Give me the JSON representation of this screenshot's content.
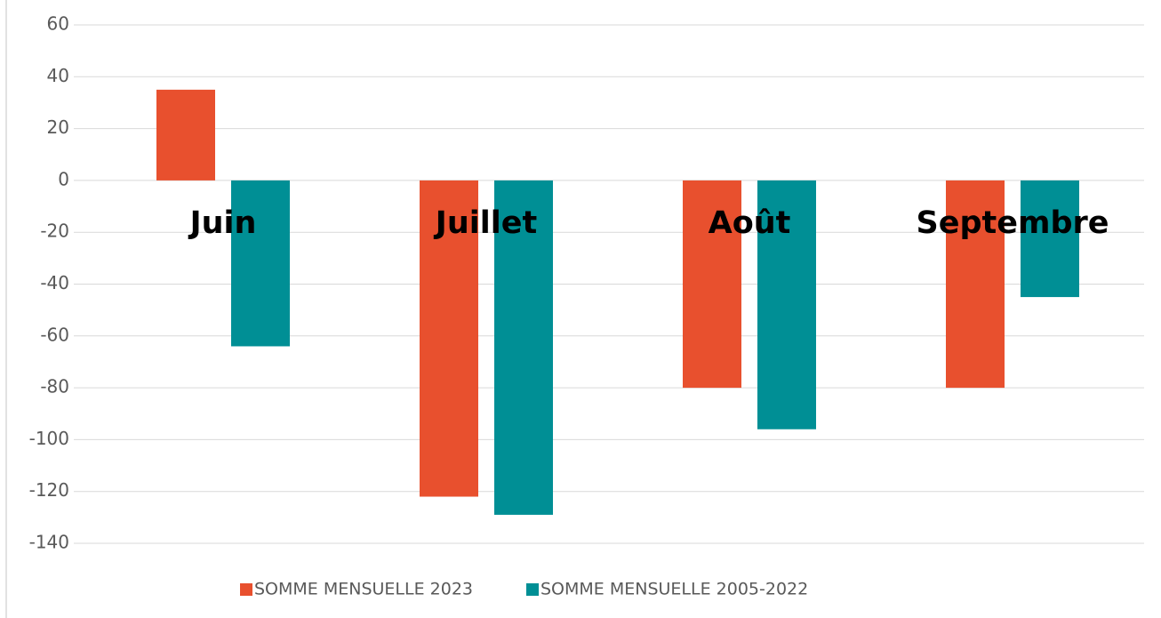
{
  "chart_data": {
    "type": "bar",
    "categories": [
      "Juin",
      "Juillet",
      "Août",
      "Septembre"
    ],
    "series": [
      {
        "name": "SOMME MENSUELLE 2023",
        "color": "#e8502e",
        "values": [
          35,
          -122,
          -80,
          -80
        ]
      },
      {
        "name": "SOMME MENSUELLE 2005-2022",
        "color": "#008f95",
        "values": [
          -64,
          -129,
          -96,
          -45
        ]
      }
    ],
    "ylim": [
      -140,
      60
    ],
    "yticks": [
      -140,
      -120,
      -100,
      -80,
      -60,
      -40,
      -20,
      0,
      20,
      40,
      60
    ],
    "grid": true,
    "legend": "bottom"
  }
}
